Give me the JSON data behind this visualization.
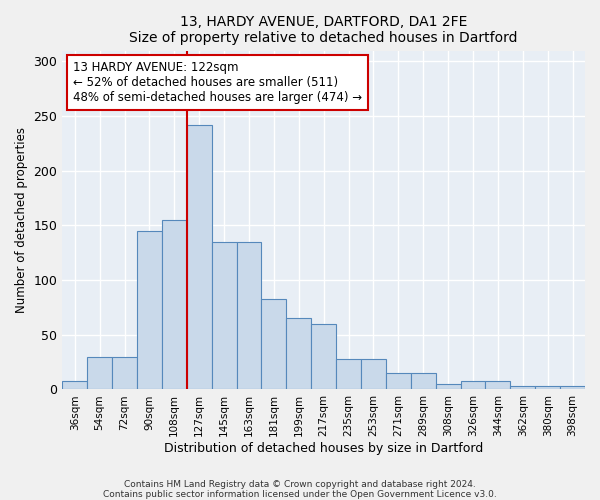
{
  "title1": "13, HARDY AVENUE, DARTFORD, DA1 2FE",
  "title2": "Size of property relative to detached houses in Dartford",
  "xlabel": "Distribution of detached houses by size in Dartford",
  "ylabel": "Number of detached properties",
  "bar_color": "#c9d9ea",
  "bar_edge_color": "#5588bb",
  "background_color": "#e8eef5",
  "grid_color": "#ffffff",
  "vline_color": "#cc0000",
  "vline_x_index": 5,
  "annotation_text": "13 HARDY AVENUE: 122sqm\n← 52% of detached houses are smaller (511)\n48% of semi-detached houses are larger (474) →",
  "annotation_box_color": "#ffffff",
  "annotation_box_edge": "#cc0000",
  "categories": [
    "36sqm",
    "54sqm",
    "72sqm",
    "90sqm",
    "108sqm",
    "127sqm",
    "145sqm",
    "163sqm",
    "181sqm",
    "199sqm",
    "217sqm",
    "235sqm",
    "253sqm",
    "271sqm",
    "289sqm",
    "308sqm",
    "326sqm",
    "344sqm",
    "362sqm",
    "380sqm",
    "398sqm"
  ],
  "values": [
    8,
    30,
    30,
    145,
    155,
    242,
    135,
    135,
    83,
    65,
    60,
    28,
    28,
    15,
    15,
    5,
    8,
    8,
    3,
    3,
    3
  ],
  "ylim": [
    0,
    310
  ],
  "yticks": [
    0,
    50,
    100,
    150,
    200,
    250,
    300
  ],
  "footer1": "Contains HM Land Registry data © Crown copyright and database right 2024.",
  "footer2": "Contains public sector information licensed under the Open Government Licence v3.0."
}
